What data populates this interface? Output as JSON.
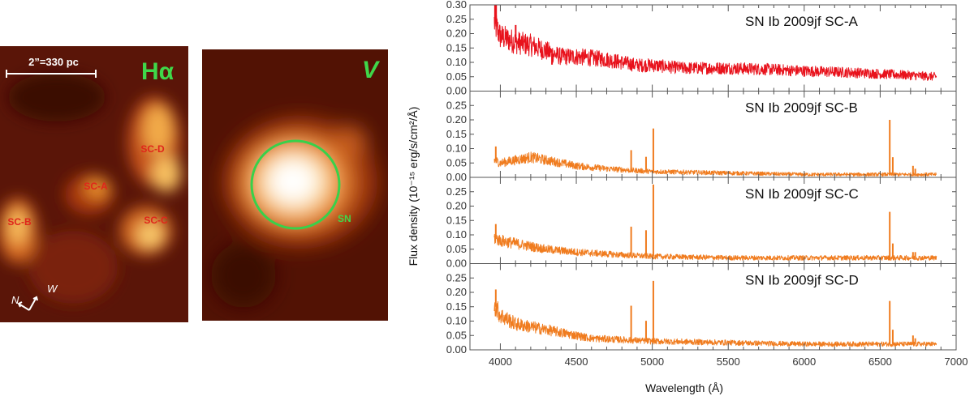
{
  "left_images": {
    "halpha": {
      "band_label": "Hα",
      "scale_bar": "2”=330 pc",
      "clusters": [
        "SC-D",
        "SC-A",
        "SC-B",
        "SC-C"
      ],
      "compass": {
        "n": "N",
        "w": "W"
      }
    },
    "v_band": {
      "band_label": "V",
      "sn_label": "SN"
    },
    "colors": {
      "label_red": "#e0261b",
      "label_green": "#3fd84a",
      "circle": "#38d14a"
    }
  },
  "chart_data": {
    "type": "line",
    "xlabel": "Wavelength (Å)",
    "ylabel": "Flux density (10⁻¹⁵ erg/s/cm²/Å)",
    "xlim": [
      3800,
      7000
    ],
    "xticks": [
      4000,
      4500,
      5000,
      5500,
      6000,
      6500,
      7000
    ],
    "panels": [
      {
        "title": "SN Ib 2009jf SC-A",
        "color": "#e8121c",
        "ylim": [
          0,
          0.3
        ],
        "yticks": [
          "0.00",
          "0.05",
          "0.10",
          "0.15",
          "0.20",
          "0.25",
          "0.30"
        ],
        "continuum": [
          [
            3960,
            0.24
          ],
          [
            4000,
            0.19
          ],
          [
            4100,
            0.17
          ],
          [
            4200,
            0.16
          ],
          [
            4300,
            0.14
          ],
          [
            4400,
            0.12
          ],
          [
            4500,
            0.12
          ],
          [
            4700,
            0.11
          ],
          [
            4900,
            0.09
          ],
          [
            5000,
            0.09
          ],
          [
            5200,
            0.08
          ],
          [
            5500,
            0.08
          ],
          [
            5800,
            0.075
          ],
          [
            6000,
            0.07
          ],
          [
            6300,
            0.065
          ],
          [
            6500,
            0.06
          ],
          [
            6700,
            0.055
          ],
          [
            6870,
            0.05
          ]
        ],
        "lines": [
          [
            3965,
            0.32
          ],
          [
            3972,
            0.1
          ],
          [
            4101,
            0.06
          ],
          [
            4340,
            -0.04
          ],
          [
            4861,
            -0.02
          ]
        ]
      },
      {
        "title": "SN Ib 2009jf SC-B",
        "color": "#f07c1f",
        "ylim": [
          0,
          0.3
        ],
        "yticks": [
          "0.00",
          "0.05",
          "0.10",
          "0.15",
          "0.20",
          "0.25"
        ],
        "continuum": [
          [
            3960,
            0.06
          ],
          [
            4000,
            0.05
          ],
          [
            4100,
            0.06
          ],
          [
            4200,
            0.07
          ],
          [
            4300,
            0.06
          ],
          [
            4400,
            0.05
          ],
          [
            4500,
            0.04
          ],
          [
            4700,
            0.03
          ],
          [
            5000,
            0.02
          ],
          [
            5500,
            0.015
          ],
          [
            6000,
            0.01
          ],
          [
            6500,
            0.01
          ],
          [
            6870,
            0.01
          ]
        ],
        "lines": [
          [
            3970,
            0.05
          ],
          [
            4861,
            0.07
          ],
          [
            4959,
            0.05
          ],
          [
            5007,
            0.15
          ],
          [
            6563,
            0.19
          ],
          [
            6583,
            0.06
          ],
          [
            6716,
            0.03
          ],
          [
            6731,
            0.02
          ]
        ]
      },
      {
        "title": "SN Ib 2009jf SC-C",
        "color": "#f07c1f",
        "ylim": [
          0,
          0.3
        ],
        "yticks": [
          "0.00",
          "0.05",
          "0.10",
          "0.15",
          "0.20",
          "0.25"
        ],
        "continuum": [
          [
            3960,
            0.09
          ],
          [
            4000,
            0.08
          ],
          [
            4100,
            0.07
          ],
          [
            4300,
            0.05
          ],
          [
            4500,
            0.04
          ],
          [
            4800,
            0.03
          ],
          [
            5000,
            0.025
          ],
          [
            5500,
            0.02
          ],
          [
            6000,
            0.02
          ],
          [
            6500,
            0.02
          ],
          [
            6870,
            0.02
          ]
        ],
        "lines": [
          [
            3970,
            0.05
          ],
          [
            4861,
            0.1
          ],
          [
            4959,
            0.09
          ],
          [
            5007,
            0.25
          ],
          [
            6563,
            0.16
          ],
          [
            6583,
            0.05
          ],
          [
            6716,
            0.02
          ],
          [
            6731,
            0.02
          ]
        ]
      },
      {
        "title": "SN Ib 2009jf SC-D",
        "color": "#f07c1f",
        "ylim": [
          0,
          0.3
        ],
        "yticks": [
          "0.00",
          "0.05",
          "0.10",
          "0.15",
          "0.20",
          "0.25"
        ],
        "continuum": [
          [
            3960,
            0.16
          ],
          [
            4000,
            0.12
          ],
          [
            4100,
            0.09
          ],
          [
            4200,
            0.08
          ],
          [
            4400,
            0.06
          ],
          [
            4600,
            0.04
          ],
          [
            4800,
            0.035
          ],
          [
            5000,
            0.03
          ],
          [
            5500,
            0.025
          ],
          [
            6000,
            0.02
          ],
          [
            6500,
            0.02
          ],
          [
            6870,
            0.02
          ]
        ],
        "lines": [
          [
            3970,
            0.06
          ],
          [
            4861,
            0.12
          ],
          [
            4959,
            0.07
          ],
          [
            5007,
            0.21
          ],
          [
            6563,
            0.15
          ],
          [
            6583,
            0.05
          ],
          [
            6716,
            0.03
          ],
          [
            6731,
            0.02
          ]
        ]
      }
    ]
  }
}
